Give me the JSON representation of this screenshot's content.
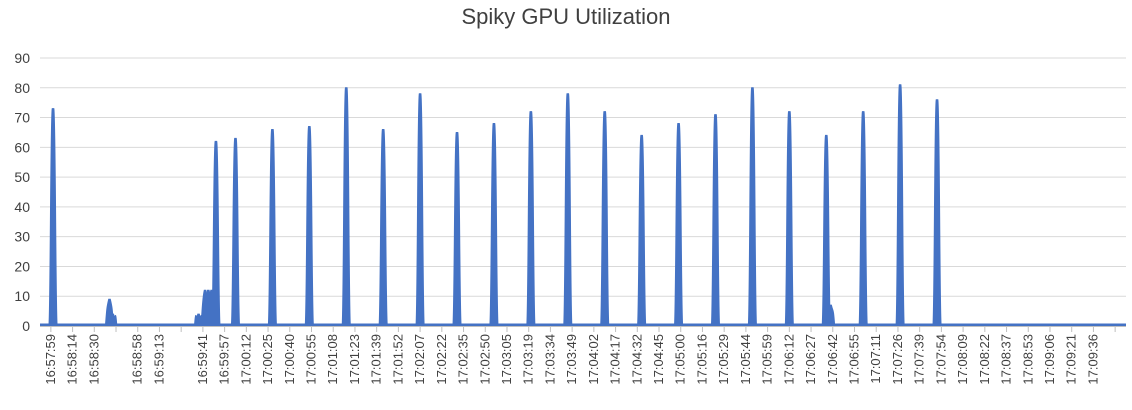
{
  "chart_data": {
    "type": "area",
    "title": "Spiky GPU Utilization",
    "xlabel": "",
    "ylabel": "",
    "ylim": [
      0,
      90
    ],
    "yticks": [
      0,
      10,
      20,
      30,
      40,
      50,
      60,
      70,
      80,
      90
    ],
    "grid": true,
    "legend": "none",
    "color": "#4472c4",
    "x_ticks": [
      "16:57:59",
      "16:58:14",
      "16:58:30",
      "",
      "16:58:58",
      "16:59:13",
      "",
      "16:59:41",
      "16:59:57",
      "17:00:12",
      "17:00:25",
      "17:00:40",
      "17:00:55",
      "17:01:08",
      "17:01:23",
      "17:01:39",
      "17:01:52",
      "17:02:07",
      "17:02:22",
      "17:02:35",
      "17:02:50",
      "17:03:05",
      "17:03:19",
      "17:03:34",
      "17:03:49",
      "17:04:02",
      "17:04:17",
      "17:04:32",
      "17:04:45",
      "17:05:00",
      "17:05:16",
      "17:05:29",
      "17:05:44",
      "17:05:59",
      "17:06:12",
      "17:06:27",
      "17:06:42",
      "17:06:55",
      "17:07:11",
      "17:07:26",
      "17:07:39",
      "17:07:54",
      "17:08:09",
      "17:08:22",
      "17:08:37",
      "17:08:53",
      "17:09:06",
      "17:09:21",
      "17:09:36",
      ""
    ],
    "series": [
      {
        "spikes": [
          {
            "pos": 0.6,
            "value": 73
          },
          {
            "pos": 3.2,
            "value": 9
          },
          {
            "pos": 3.35,
            "value": 4
          },
          {
            "pos": 7.3,
            "value": 4
          },
          {
            "pos": 7.6,
            "value": 12
          },
          {
            "pos": 7.75,
            "value": 12
          },
          {
            "pos": 7.9,
            "value": 12
          },
          {
            "pos": 8.1,
            "value": 62
          },
          {
            "pos": 9.0,
            "value": 63
          },
          {
            "pos": 10.7,
            "value": 66
          },
          {
            "pos": 12.4,
            "value": 67
          },
          {
            "pos": 14.1,
            "value": 80
          },
          {
            "pos": 15.8,
            "value": 66
          },
          {
            "pos": 17.5,
            "value": 78
          },
          {
            "pos": 19.2,
            "value": 65
          },
          {
            "pos": 20.9,
            "value": 68
          },
          {
            "pos": 22.6,
            "value": 72
          },
          {
            "pos": 24.3,
            "value": 78
          },
          {
            "pos": 26.0,
            "value": 72
          },
          {
            "pos": 27.7,
            "value": 64
          },
          {
            "pos": 29.4,
            "value": 68
          },
          {
            "pos": 31.1,
            "value": 71
          },
          {
            "pos": 32.8,
            "value": 80
          },
          {
            "pos": 34.5,
            "value": 72
          },
          {
            "pos": 36.2,
            "value": 64
          },
          {
            "pos": 36.4,
            "value": 7
          },
          {
            "pos": 37.9,
            "value": 72
          },
          {
            "pos": 39.6,
            "value": 81
          },
          {
            "pos": 41.3,
            "value": 76
          }
        ]
      }
    ]
  }
}
